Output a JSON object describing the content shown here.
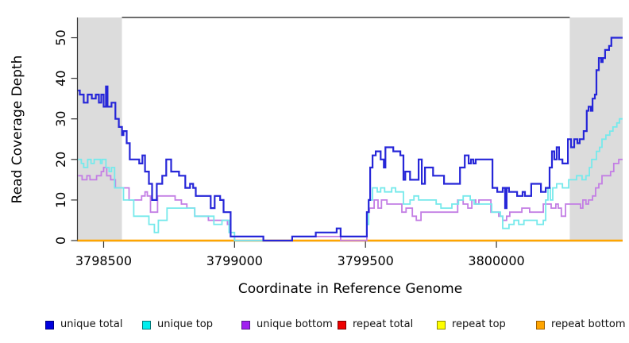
{
  "figure": {
    "background": "#FFFFFF",
    "shaded_region_color": "#DCDCDC",
    "axis_color": "#333333",
    "frame_color": "#3D3D3D"
  },
  "chart_data": {
    "type": "line",
    "subtype": "step",
    "title": "",
    "xlabel": "Coordinate in Reference Genome",
    "ylabel": "Read Coverage Depth",
    "xlim": [
      3798400,
      3800482
    ],
    "ylim": [
      0,
      55
    ],
    "xticks": [
      3798500,
      3799000,
      3799500,
      3800000
    ],
    "yticks": [
      0,
      10,
      20,
      30,
      40,
      50
    ],
    "grid": false,
    "legend_position": "bottom",
    "shaded_regions": [
      {
        "x0": 3798400,
        "x1": 3798570
      },
      {
        "x0": 3800280,
        "x1": 3800482
      }
    ],
    "draw_order": [
      3,
      4,
      5,
      2,
      1,
      0
    ],
    "series": [
      {
        "name": "unique total",
        "color": "#2626D8",
        "width": 2.2,
        "points": [
          [
            3798402,
            37
          ],
          [
            3798409,
            36
          ],
          [
            3798424,
            34
          ],
          [
            3798439,
            36
          ],
          [
            3798455,
            35
          ],
          [
            3798470,
            36
          ],
          [
            3798482,
            34
          ],
          [
            3798491,
            36
          ],
          [
            3798500,
            33
          ],
          [
            3798509,
            38
          ],
          [
            3798515,
            33
          ],
          [
            3798530,
            34
          ],
          [
            3798545,
            30
          ],
          [
            3798558,
            28
          ],
          [
            3798570,
            26
          ],
          [
            3798576,
            27
          ],
          [
            3798588,
            24
          ],
          [
            3798600,
            20
          ],
          [
            3798636,
            19
          ],
          [
            3798648,
            21
          ],
          [
            3798658,
            17
          ],
          [
            3798673,
            14
          ],
          [
            3798685,
            10
          ],
          [
            3798703,
            14
          ],
          [
            3798724,
            16
          ],
          [
            3798739,
            20
          ],
          [
            3798758,
            17
          ],
          [
            3798788,
            16
          ],
          [
            3798812,
            13
          ],
          [
            3798830,
            14
          ],
          [
            3798842,
            13
          ],
          [
            3798852,
            11
          ],
          [
            3798909,
            8
          ],
          [
            3798924,
            11
          ],
          [
            3798945,
            10
          ],
          [
            3798958,
            7
          ],
          [
            3798985,
            1
          ],
          [
            3799110,
            0
          ],
          [
            3799220,
            1
          ],
          [
            3799310,
            2
          ],
          [
            3799390,
            3
          ],
          [
            3799405,
            1
          ],
          [
            3799505,
            7
          ],
          [
            3799512,
            10
          ],
          [
            3799518,
            18
          ],
          [
            3799527,
            21
          ],
          [
            3799539,
            22
          ],
          [
            3799558,
            20
          ],
          [
            3799570,
            18
          ],
          [
            3799576,
            23
          ],
          [
            3799606,
            22
          ],
          [
            3799633,
            21
          ],
          [
            3799645,
            15
          ],
          [
            3799652,
            17
          ],
          [
            3799670,
            15
          ],
          [
            3799703,
            20
          ],
          [
            3799715,
            14
          ],
          [
            3799727,
            18
          ],
          [
            3799758,
            16
          ],
          [
            3799800,
            14
          ],
          [
            3799861,
            18
          ],
          [
            3799879,
            21
          ],
          [
            3799894,
            19
          ],
          [
            3799903,
            20
          ],
          [
            3799912,
            19
          ],
          [
            3799921,
            20
          ],
          [
            3799985,
            13
          ],
          [
            3800003,
            12
          ],
          [
            3800024,
            13
          ],
          [
            3800033,
            8
          ],
          [
            3800039,
            13
          ],
          [
            3800048,
            12
          ],
          [
            3800079,
            11
          ],
          [
            3800100,
            12
          ],
          [
            3800109,
            11
          ],
          [
            3800133,
            14
          ],
          [
            3800170,
            12
          ],
          [
            3800188,
            13
          ],
          [
            3800203,
            18
          ],
          [
            3800212,
            22
          ],
          [
            3800221,
            20
          ],
          [
            3800230,
            23
          ],
          [
            3800239,
            20
          ],
          [
            3800252,
            19
          ],
          [
            3800273,
            25
          ],
          [
            3800285,
            23
          ],
          [
            3800297,
            25
          ],
          [
            3800309,
            24
          ],
          [
            3800318,
            25
          ],
          [
            3800333,
            27
          ],
          [
            3800345,
            32
          ],
          [
            3800352,
            33
          ],
          [
            3800361,
            32
          ],
          [
            3800367,
            35
          ],
          [
            3800376,
            36
          ],
          [
            3800382,
            42
          ],
          [
            3800391,
            45
          ],
          [
            3800400,
            44
          ],
          [
            3800406,
            45
          ],
          [
            3800415,
            47
          ],
          [
            3800430,
            48
          ],
          [
            3800439,
            50
          ],
          [
            3800482,
            50
          ]
        ]
      },
      {
        "name": "unique top",
        "color": "#76E9EB",
        "width": 1.8,
        "points": [
          [
            3798402,
            20
          ],
          [
            3798415,
            19
          ],
          [
            3798424,
            18
          ],
          [
            3798439,
            20
          ],
          [
            3798452,
            19
          ],
          [
            3798464,
            20
          ],
          [
            3798488,
            19
          ],
          [
            3798494,
            20
          ],
          [
            3798509,
            18
          ],
          [
            3798521,
            17
          ],
          [
            3798530,
            18
          ],
          [
            3798542,
            13
          ],
          [
            3798576,
            10
          ],
          [
            3798615,
            6
          ],
          [
            3798652,
            6
          ],
          [
            3798673,
            4
          ],
          [
            3798694,
            2
          ],
          [
            3798709,
            5
          ],
          [
            3798742,
            8
          ],
          [
            3798848,
            6
          ],
          [
            3798921,
            4
          ],
          [
            3798952,
            5
          ],
          [
            3798979,
            2
          ],
          [
            3799000,
            0
          ],
          [
            3799220,
            1
          ],
          [
            3799310,
            2
          ],
          [
            3799390,
            3
          ],
          [
            3799405,
            1
          ],
          [
            3799505,
            4
          ],
          [
            3799512,
            10
          ],
          [
            3799527,
            13
          ],
          [
            3799545,
            12
          ],
          [
            3799558,
            13
          ],
          [
            3799573,
            12
          ],
          [
            3799600,
            13
          ],
          [
            3799615,
            12
          ],
          [
            3799645,
            9
          ],
          [
            3799670,
            10
          ],
          [
            3799685,
            11
          ],
          [
            3799703,
            10
          ],
          [
            3799740,
            10
          ],
          [
            3799770,
            9
          ],
          [
            3799788,
            8
          ],
          [
            3799830,
            9
          ],
          [
            3799855,
            10
          ],
          [
            3799873,
            11
          ],
          [
            3799900,
            10
          ],
          [
            3799915,
            9
          ],
          [
            3799955,
            9
          ],
          [
            3799982,
            7
          ],
          [
            3800015,
            6
          ],
          [
            3800024,
            3
          ],
          [
            3800048,
            4
          ],
          [
            3800067,
            5
          ],
          [
            3800085,
            4
          ],
          [
            3800105,
            5
          ],
          [
            3800136,
            5
          ],
          [
            3800155,
            4
          ],
          [
            3800179,
            5
          ],
          [
            3800188,
            10
          ],
          [
            3800197,
            13
          ],
          [
            3800206,
            10
          ],
          [
            3800215,
            13
          ],
          [
            3800230,
            14
          ],
          [
            3800252,
            13
          ],
          [
            3800276,
            15
          ],
          [
            3800306,
            16
          ],
          [
            3800327,
            15
          ],
          [
            3800342,
            16
          ],
          [
            3800355,
            18
          ],
          [
            3800364,
            20
          ],
          [
            3800382,
            22
          ],
          [
            3800394,
            23
          ],
          [
            3800403,
            25
          ],
          [
            3800418,
            26
          ],
          [
            3800433,
            27
          ],
          [
            3800445,
            28
          ],
          [
            3800460,
            29
          ],
          [
            3800470,
            30
          ],
          [
            3800482,
            30
          ]
        ]
      },
      {
        "name": "unique bottom",
        "color": "#C37EE4",
        "width": 1.8,
        "points": [
          [
            3798402,
            16
          ],
          [
            3798418,
            15
          ],
          [
            3798436,
            16
          ],
          [
            3798448,
            15
          ],
          [
            3798473,
            16
          ],
          [
            3798491,
            17
          ],
          [
            3798500,
            18
          ],
          [
            3798512,
            16
          ],
          [
            3798527,
            15
          ],
          [
            3798545,
            13
          ],
          [
            3798597,
            10
          ],
          [
            3798645,
            11
          ],
          [
            3798658,
            12
          ],
          [
            3798667,
            11
          ],
          [
            3798679,
            7
          ],
          [
            3798706,
            11
          ],
          [
            3798752,
            11
          ],
          [
            3798773,
            10
          ],
          [
            3798797,
            9
          ],
          [
            3798818,
            8
          ],
          [
            3798848,
            6
          ],
          [
            3798900,
            5
          ],
          [
            3798973,
            4
          ],
          [
            3798985,
            1
          ],
          [
            3799000,
            0
          ],
          [
            3799220,
            1
          ],
          [
            3799405,
            0
          ],
          [
            3799505,
            7
          ],
          [
            3799515,
            8
          ],
          [
            3799533,
            10
          ],
          [
            3799548,
            8
          ],
          [
            3799561,
            10
          ],
          [
            3799582,
            9
          ],
          [
            3799627,
            9
          ],
          [
            3799639,
            7
          ],
          [
            3799655,
            8
          ],
          [
            3799679,
            6
          ],
          [
            3799694,
            5
          ],
          [
            3799712,
            7
          ],
          [
            3799833,
            7
          ],
          [
            3799852,
            10
          ],
          [
            3799873,
            9
          ],
          [
            3799891,
            8
          ],
          [
            3799906,
            10
          ],
          [
            3799921,
            9
          ],
          [
            3799933,
            10
          ],
          [
            3799979,
            7
          ],
          [
            3800009,
            6
          ],
          [
            3800024,
            5
          ],
          [
            3800039,
            6
          ],
          [
            3800051,
            7
          ],
          [
            3800097,
            8
          ],
          [
            3800127,
            7
          ],
          [
            3800179,
            9
          ],
          [
            3800209,
            8
          ],
          [
            3800227,
            9
          ],
          [
            3800236,
            8
          ],
          [
            3800248,
            6
          ],
          [
            3800264,
            9
          ],
          [
            3800306,
            9
          ],
          [
            3800321,
            8
          ],
          [
            3800330,
            10
          ],
          [
            3800342,
            9
          ],
          [
            3800352,
            10
          ],
          [
            3800367,
            11
          ],
          [
            3800379,
            13
          ],
          [
            3800391,
            14
          ],
          [
            3800403,
            16
          ],
          [
            3800424,
            16
          ],
          [
            3800436,
            17
          ],
          [
            3800448,
            19
          ],
          [
            3800467,
            20
          ],
          [
            3800482,
            20
          ]
        ]
      },
      {
        "name": "repeat total",
        "color": "#E00000",
        "width": 1.5,
        "points": [
          [
            3798400,
            0
          ],
          [
            3800482,
            0
          ]
        ]
      },
      {
        "name": "repeat top",
        "color": "#FFFF00",
        "width": 1.5,
        "points": [
          [
            3798400,
            0
          ],
          [
            3800482,
            0
          ]
        ]
      },
      {
        "name": "repeat bottom",
        "color": "#FFA500",
        "width": 2.4,
        "points": [
          [
            3798400,
            0
          ],
          [
            3800482,
            0
          ]
        ]
      }
    ]
  },
  "legend": {
    "items": [
      {
        "label": "unique total",
        "fill": "#0000DD",
        "border": "#000080"
      },
      {
        "label": "unique top",
        "fill": "#00EEEE",
        "border": "#007A7A"
      },
      {
        "label": "unique bottom",
        "fill": "#A020F0",
        "border": "#551A8B"
      },
      {
        "label": "repeat total",
        "fill": "#EE0000",
        "border": "#7A0000"
      },
      {
        "label": "repeat top",
        "fill": "#FFFF00",
        "border": "#8B8B00"
      },
      {
        "label": "repeat bottom",
        "fill": "#FFA500",
        "border": "#A06000"
      }
    ]
  }
}
